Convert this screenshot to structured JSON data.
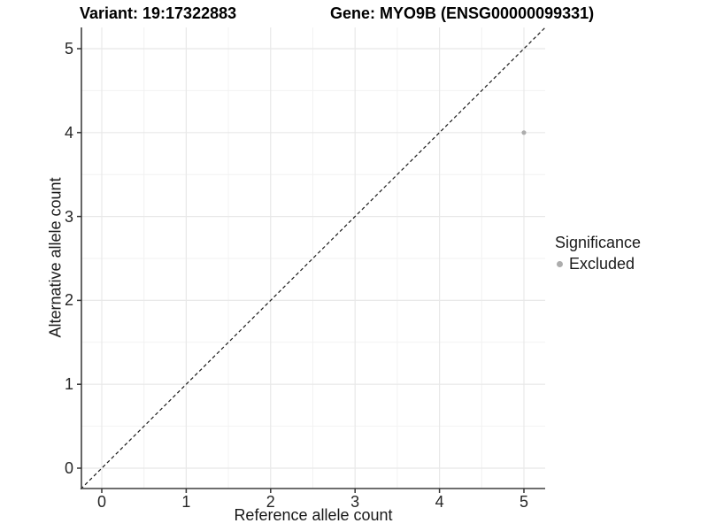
{
  "header": {
    "title_left": "Variant: 19:17322883",
    "title_right": "Gene: MYO9B (ENSG00000099331)"
  },
  "chart_data": {
    "type": "scatter",
    "xlabel": "Reference allele count",
    "ylabel": "Alternative allele count",
    "xlim": [
      -0.25,
      5.25
    ],
    "ylim": [
      -0.25,
      5.25
    ],
    "x_ticks": [
      0,
      1,
      2,
      3,
      4,
      5
    ],
    "y_ticks": [
      0,
      1,
      2,
      3,
      4,
      5
    ],
    "x_minor_ticks": [
      0.5,
      1.5,
      2.5,
      3.5,
      4.5
    ],
    "y_minor_ticks": [
      0.5,
      1.5,
      2.5,
      3.5,
      4.5
    ],
    "grid": true,
    "reference_line": {
      "type": "identity",
      "style": "dashed",
      "color": "#1a1a1a"
    },
    "points": [
      {
        "x": 5,
        "y": 4,
        "series": "Excluded"
      }
    ],
    "legend": {
      "title": "Significance",
      "position": "right",
      "items": [
        {
          "label": "Excluded",
          "color": "#adadad"
        }
      ]
    }
  },
  "style": {
    "grid_major_color": "#e8e8e8",
    "grid_minor_color": "#f2f2f2",
    "axis_line_color": "#3f3f3f",
    "tick_color": "#333333",
    "point_color": "#adadad"
  }
}
